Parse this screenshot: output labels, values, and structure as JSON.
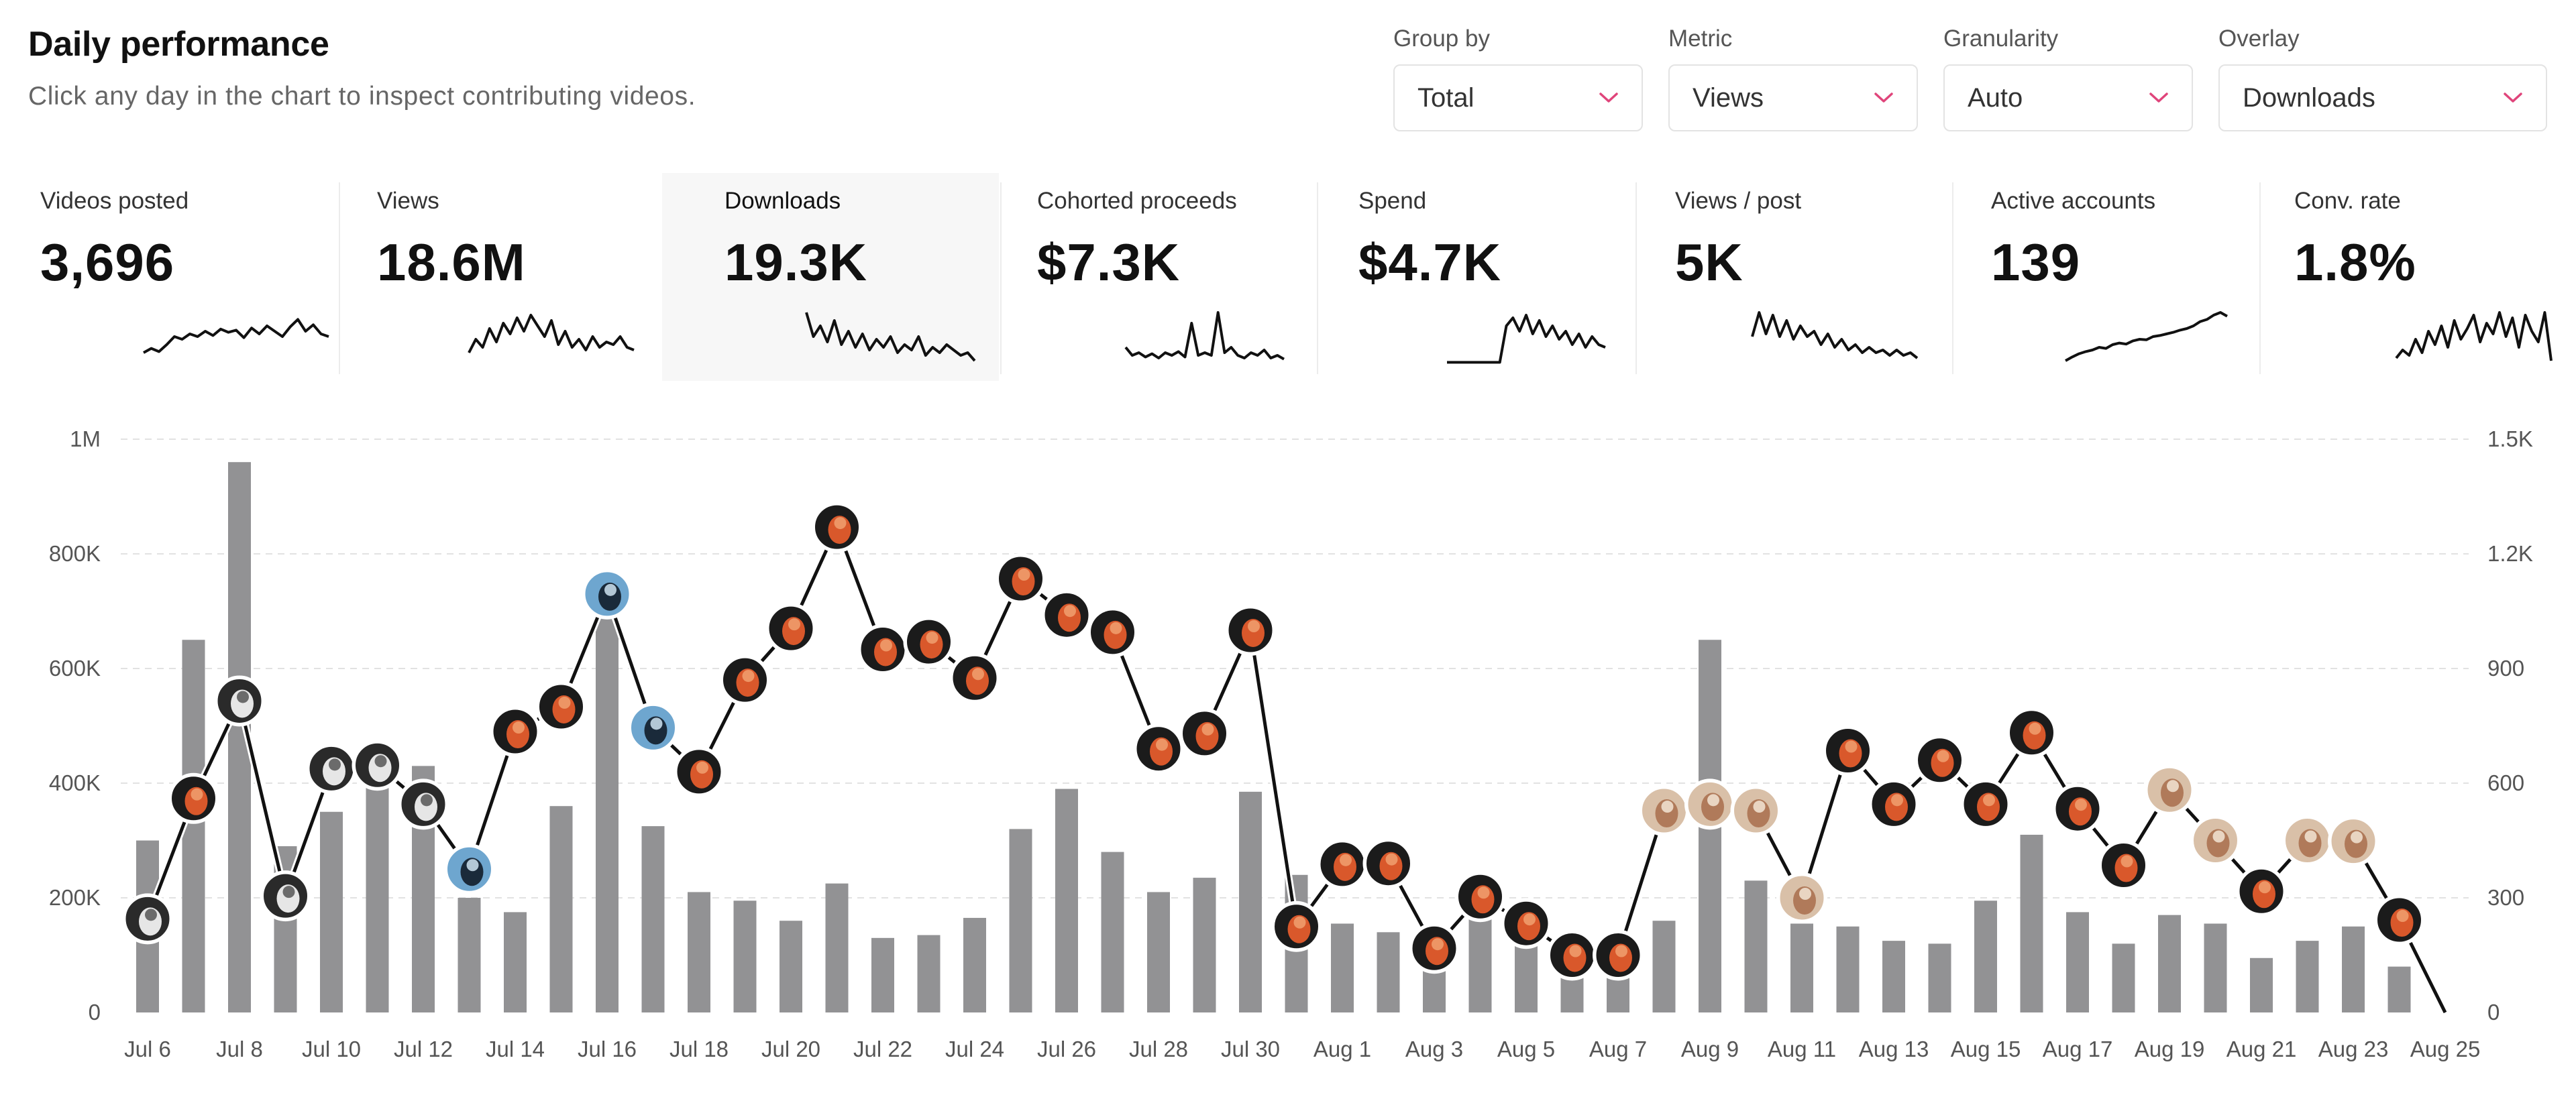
{
  "header": {
    "title": "Daily performance",
    "subtitle": "Click any day in the chart to inspect contributing videos."
  },
  "controls": [
    {
      "label": "Group by",
      "value": "Total"
    },
    {
      "label": "Metric",
      "value": "Views"
    },
    {
      "label": "Granularity",
      "value": "Auto"
    },
    {
      "label": "Overlay",
      "value": "Downloads"
    }
  ],
  "kpis": [
    {
      "label": "Videos posted",
      "value": "3,696",
      "selected": false,
      "spark": [
        0.2,
        0.28,
        0.22,
        0.35,
        0.5,
        0.45,
        0.55,
        0.5,
        0.6,
        0.52,
        0.64,
        0.58,
        0.62,
        0.48,
        0.66,
        0.55,
        0.7,
        0.6,
        0.5,
        0.68,
        0.82,
        0.6,
        0.72,
        0.55,
        0.5
      ]
    },
    {
      "label": "Views",
      "value": "18.6M",
      "selected": false,
      "spark": [
        0.2,
        0.45,
        0.3,
        0.65,
        0.4,
        0.75,
        0.55,
        0.85,
        0.6,
        0.9,
        0.7,
        0.5,
        0.8,
        0.35,
        0.6,
        0.3,
        0.45,
        0.25,
        0.5,
        0.3,
        0.4,
        0.35,
        0.5,
        0.3,
        0.25
      ]
    },
    {
      "label": "Downloads",
      "value": "19.3K",
      "selected": true,
      "spark": [
        0.95,
        0.5,
        0.7,
        0.4,
        0.8,
        0.35,
        0.6,
        0.3,
        0.55,
        0.25,
        0.45,
        0.3,
        0.5,
        0.2,
        0.35,
        0.25,
        0.5,
        0.15,
        0.3,
        0.2,
        0.35,
        0.25,
        0.15,
        0.2,
        0.05
      ]
    },
    {
      "label": "Cohorted proceeds",
      "value": "$7.3K",
      "selected": false,
      "spark": [
        0.3,
        0.15,
        0.2,
        0.12,
        0.18,
        0.1,
        0.2,
        0.15,
        0.22,
        0.12,
        0.75,
        0.15,
        0.2,
        0.15,
        0.95,
        0.2,
        0.3,
        0.15,
        0.1,
        0.2,
        0.15,
        0.25,
        0.1,
        0.15,
        0.08
      ]
    },
    {
      "label": "Spend",
      "value": "$4.7K",
      "selected": false,
      "spark": [
        0.02,
        0.02,
        0.02,
        0.02,
        0.02,
        0.02,
        0.02,
        0.02,
        0.02,
        0.7,
        0.85,
        0.6,
        0.9,
        0.55,
        0.8,
        0.5,
        0.7,
        0.45,
        0.6,
        0.35,
        0.55,
        0.3,
        0.5,
        0.35,
        0.3
      ]
    },
    {
      "label": "Views / post",
      "value": "5K",
      "selected": false,
      "spark": [
        0.5,
        0.95,
        0.55,
        0.9,
        0.5,
        0.8,
        0.45,
        0.7,
        0.5,
        0.6,
        0.35,
        0.55,
        0.3,
        0.45,
        0.25,
        0.35,
        0.2,
        0.3,
        0.2,
        0.25,
        0.15,
        0.25,
        0.15,
        0.2,
        0.1
      ]
    },
    {
      "label": "Active accounts",
      "value": "139",
      "selected": false,
      "spark": [
        0.05,
        0.12,
        0.18,
        0.22,
        0.25,
        0.3,
        0.28,
        0.35,
        0.38,
        0.36,
        0.42,
        0.45,
        0.44,
        0.5,
        0.52,
        0.55,
        0.58,
        0.62,
        0.65,
        0.7,
        0.78,
        0.82,
        0.9,
        0.95,
        0.88
      ]
    },
    {
      "label": "Conv. rate",
      "value": "1.8%",
      "selected": false,
      "spark": [
        0.1,
        0.25,
        0.15,
        0.45,
        0.2,
        0.6,
        0.35,
        0.7,
        0.3,
        0.8,
        0.45,
        0.65,
        0.9,
        0.4,
        0.75,
        0.55,
        0.95,
        0.5,
        0.85,
        0.3,
        0.9,
        0.6,
        0.4,
        0.95,
        0.05
      ]
    }
  ],
  "chart_data": {
    "type": "bar",
    "overlay_type": "line",
    "x": [
      "Jul 6",
      "Jul 7",
      "Jul 8",
      "Jul 9",
      "Jul 10",
      "Jul 11",
      "Jul 12",
      "Jul 13",
      "Jul 14",
      "Jul 15",
      "Jul 16",
      "Jul 17",
      "Jul 18",
      "Jul 19",
      "Jul 20",
      "Jul 21",
      "Jul 22",
      "Jul 23",
      "Jul 24",
      "Jul 25",
      "Jul 26",
      "Jul 27",
      "Jul 28",
      "Jul 29",
      "Jul 30",
      "Jul 31",
      "Aug 1",
      "Aug 2",
      "Aug 3",
      "Aug 4",
      "Aug 5",
      "Aug 6",
      "Aug 7",
      "Aug 8",
      "Aug 9",
      "Aug 10",
      "Aug 11",
      "Aug 12",
      "Aug 13",
      "Aug 14",
      "Aug 15",
      "Aug 16",
      "Aug 17",
      "Aug 18",
      "Aug 19",
      "Aug 20",
      "Aug 21",
      "Aug 22",
      "Aug 23",
      "Aug 24",
      "Aug 25"
    ],
    "x_tick_labels": [
      "Jul 6",
      "Jul 8",
      "Jul 10",
      "Jul 12",
      "Jul 14",
      "Jul 16",
      "Jul 18",
      "Jul 20",
      "Jul 22",
      "Jul 24",
      "Jul 26",
      "Jul 28",
      "Jul 30",
      "Aug 1",
      "Aug 3",
      "Aug 5",
      "Aug 7",
      "Aug 9",
      "Aug 11",
      "Aug 13",
      "Aug 15",
      "Aug 17",
      "Aug 19",
      "Aug 21",
      "Aug 23",
      "Aug 25"
    ],
    "series": [
      {
        "name": "Views",
        "axis": "left",
        "values": [
          300000,
          650000,
          960000,
          290000,
          350000,
          445000,
          430000,
          200000,
          175000,
          360000,
          720000,
          325000,
          210000,
          195000,
          160000,
          225000,
          130000,
          135000,
          165000,
          320000,
          390000,
          280000,
          210000,
          235000,
          385000,
          240000,
          155000,
          140000,
          75000,
          225000,
          130000,
          90000,
          80000,
          160000,
          650000,
          230000,
          155000,
          150000,
          125000,
          120000,
          195000,
          310000,
          175000,
          120000,
          170000,
          155000,
          95000,
          125000,
          150000,
          80000,
          0
        ]
      },
      {
        "name": "Downloads",
        "axis": "right",
        "values": [
          245,
          560,
          815,
          305,
          638,
          647,
          545,
          375,
          735,
          800,
          1095,
          745,
          630,
          870,
          1005,
          1270,
          950,
          970,
          875,
          1135,
          1040,
          995,
          690,
          730,
          1000,
          225,
          388,
          390,
          168,
          303,
          233,
          150,
          150,
          528,
          545,
          528,
          300,
          685,
          545,
          660,
          545,
          732,
          533,
          385,
          582,
          450,
          317,
          450,
          448,
          242,
          0
        ]
      }
    ],
    "ylim_left": [
      0,
      1000000
    ],
    "ylim_right": [
      0,
      1500
    ],
    "yticks_left": [
      "0",
      "200K",
      "400K",
      "600K",
      "800K",
      "1M"
    ],
    "yticks_right": [
      "0",
      "300",
      "600",
      "900",
      "1.2K",
      "1.5K"
    ],
    "grid": true
  },
  "colors": {
    "bar": "#929294",
    "line": "#111111",
    "grid": "#e2e2e2",
    "accent": "#e0457b"
  }
}
